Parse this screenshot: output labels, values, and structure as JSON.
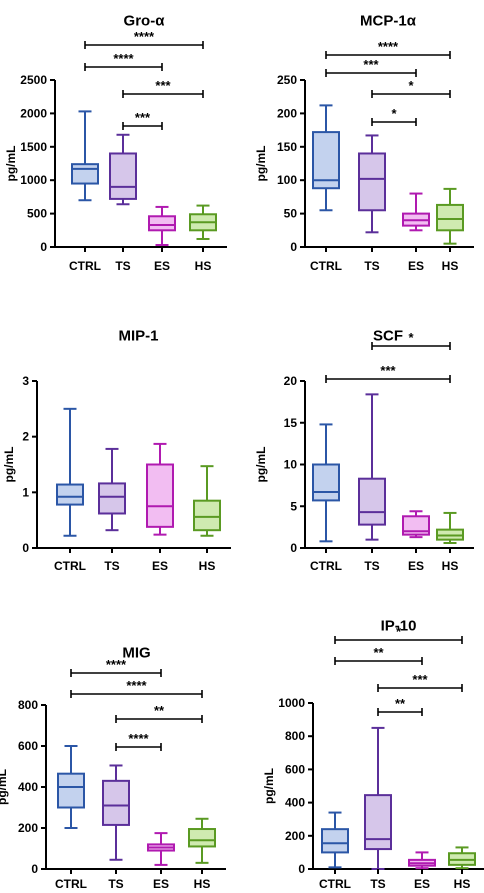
{
  "chart_data": [
    {
      "type": "boxplot",
      "title": "Gro-α",
      "ylabel": "pg/mL",
      "categories": [
        "CTRL",
        "TS",
        "ES",
        "HS"
      ],
      "ylim": [
        0,
        2500
      ],
      "yticks": [
        0,
        500,
        1000,
        1500,
        2000,
        2500
      ],
      "boxes": [
        {
          "min": 700,
          "q1": 950,
          "median": 1170,
          "q3": 1240,
          "max": 2030
        },
        {
          "min": 640,
          "q1": 720,
          "median": 900,
          "q3": 1400,
          "max": 1680
        },
        {
          "min": 30,
          "q1": 250,
          "median": 330,
          "q3": 460,
          "max": 600
        },
        {
          "min": 120,
          "q1": 250,
          "median": 370,
          "q3": 490,
          "max": 620
        }
      ],
      "comparisons": [
        {
          "from": 0,
          "to": 3,
          "label": "****"
        },
        {
          "from": 0,
          "to": 2,
          "label": "****"
        },
        {
          "from": 1,
          "to": 3,
          "label": "***"
        },
        {
          "from": 1,
          "to": 2,
          "label": "***"
        }
      ]
    },
    {
      "type": "boxplot",
      "title": "MCP-1α",
      "ylabel": "pg/mL",
      "categories": [
        "CTRL",
        "TS",
        "ES",
        "HS"
      ],
      "ylim": [
        0,
        250
      ],
      "yticks": [
        0,
        50,
        100,
        150,
        200,
        250
      ],
      "boxes": [
        {
          "min": 55,
          "q1": 88,
          "median": 100,
          "q3": 172,
          "max": 212
        },
        {
          "min": 22,
          "q1": 55,
          "median": 102,
          "q3": 140,
          "max": 167
        },
        {
          "min": 25,
          "q1": 32,
          "median": 40,
          "q3": 50,
          "max": 80
        },
        {
          "min": 5,
          "q1": 25,
          "median": 42,
          "q3": 63,
          "max": 87
        }
      ],
      "comparisons": [
        {
          "from": 0,
          "to": 3,
          "label": "****"
        },
        {
          "from": 0,
          "to": 2,
          "label": "***"
        },
        {
          "from": 1,
          "to": 3,
          "label": "*"
        },
        {
          "from": 1,
          "to": 2,
          "label": "*"
        }
      ]
    },
    {
      "type": "boxplot",
      "title": "MIP-1",
      "ylabel": "pg/mL",
      "categories": [
        "CTRL",
        "TS",
        "ES",
        "HS"
      ],
      "ylim": [
        0,
        3
      ],
      "yticks": [
        0,
        1,
        2,
        3
      ],
      "boxes": [
        {
          "min": 0.22,
          "q1": 0.78,
          "median": 0.92,
          "q3": 1.14,
          "max": 2.5
        },
        {
          "min": 0.32,
          "q1": 0.62,
          "median": 0.92,
          "q3": 1.16,
          "max": 1.78
        },
        {
          "min": 0.24,
          "q1": 0.38,
          "median": 0.75,
          "q3": 1.5,
          "max": 1.87
        },
        {
          "min": 0.22,
          "q1": 0.32,
          "median": 0.56,
          "q3": 0.85,
          "max": 1.47
        }
      ],
      "comparisons": []
    },
    {
      "type": "boxplot",
      "title": "SCF",
      "ylabel": "pg/mL",
      "categories": [
        "CTRL",
        "TS",
        "ES",
        "HS"
      ],
      "ylim": [
        0,
        20
      ],
      "yticks": [
        0,
        5,
        10,
        15,
        20
      ],
      "boxes": [
        {
          "min": 0.8,
          "q1": 5.7,
          "median": 6.7,
          "q3": 10,
          "max": 14.8
        },
        {
          "min": 1.0,
          "q1": 2.8,
          "median": 4.3,
          "q3": 8.3,
          "max": 18.4
        },
        {
          "min": 1.3,
          "q1": 1.6,
          "median": 2.0,
          "q3": 3.8,
          "max": 4.4
        },
        {
          "min": 0.6,
          "q1": 1.0,
          "median": 1.5,
          "q3": 2.2,
          "max": 4.2
        }
      ],
      "comparisons": [
        {
          "from": 1,
          "to": 3,
          "label": "*"
        },
        {
          "from": 0,
          "to": 3,
          "label": "***"
        }
      ]
    },
    {
      "type": "boxplot",
      "title": "MIG",
      "ylabel": "pg/mL",
      "categories": [
        "CTRL",
        "TS",
        "ES",
        "HS"
      ],
      "ylim": [
        0,
        800
      ],
      "yticks": [
        0,
        200,
        400,
        600,
        800
      ],
      "boxes": [
        {
          "min": 200,
          "q1": 300,
          "median": 400,
          "q3": 465,
          "max": 600
        },
        {
          "min": 45,
          "q1": 215,
          "median": 310,
          "q3": 430,
          "max": 505
        },
        {
          "min": 20,
          "q1": 90,
          "median": 105,
          "q3": 120,
          "max": 175
        },
        {
          "min": 30,
          "q1": 110,
          "median": 140,
          "q3": 195,
          "max": 245
        }
      ],
      "comparisons": [
        {
          "from": 0,
          "to": 2,
          "label": "****"
        },
        {
          "from": 0,
          "to": 3,
          "label": "****"
        },
        {
          "from": 1,
          "to": 3,
          "label": "**"
        },
        {
          "from": 1,
          "to": 2,
          "label": "****"
        }
      ]
    },
    {
      "type": "boxplot",
      "title": "IP-10",
      "ylabel": "pg/mL",
      "categories": [
        "CTRL",
        "TS",
        "ES",
        "HS"
      ],
      "ylim": [
        0,
        1000
      ],
      "yticks": [
        0,
        200,
        400,
        600,
        800,
        1000
      ],
      "boxes": [
        {
          "min": 10,
          "q1": 100,
          "median": 155,
          "q3": 240,
          "max": 340
        },
        {
          "min": 0,
          "q1": 120,
          "median": 180,
          "q3": 445,
          "max": 850
        },
        {
          "min": 5,
          "q1": 20,
          "median": 35,
          "q3": 55,
          "max": 100
        },
        {
          "min": 5,
          "q1": 25,
          "median": 55,
          "q3": 95,
          "max": 130
        }
      ],
      "comparisons": [
        {
          "from": 0,
          "to": 3,
          "label": "*"
        },
        {
          "from": 0,
          "to": 2,
          "label": "**"
        },
        {
          "from": 1,
          "to": 3,
          "label": "***"
        },
        {
          "from": 1,
          "to": 2,
          "label": "**"
        }
      ]
    }
  ],
  "colors": {
    "CTRL": {
      "stroke": "#2b56a6",
      "fill": "#c3d2ee"
    },
    "TS": {
      "stroke": "#5b2f9a",
      "fill": "#d6c6ea"
    },
    "ES": {
      "stroke": "#b01ab0",
      "fill": "#f2bdf2"
    },
    "HS": {
      "stroke": "#5a9a22",
      "fill": "#cfeab0"
    }
  }
}
